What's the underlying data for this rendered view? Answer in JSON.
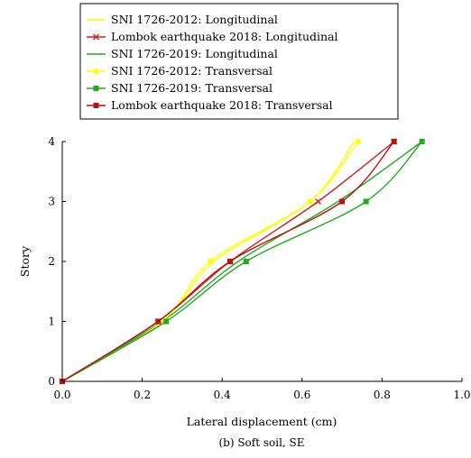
{
  "chart_data": {
    "type": "line",
    "caption": "(b) Soft soil, SE",
    "xlabel": "Lateral displacement (cm)",
    "ylabel": "Story",
    "xlim": [
      0,
      1.0
    ],
    "ylim": [
      0,
      4
    ],
    "xticks": [
      "0.0",
      "0.2",
      "0.4",
      "0.6",
      "0.8",
      "1.0"
    ],
    "yticks": [
      "0",
      "1",
      "2",
      "3",
      "4"
    ],
    "grid": false,
    "legend_position": "top-left",
    "series": [
      {
        "name": "SNI 1726-2012: Longitudinal",
        "color": "#ffff00",
        "marker": "none",
        "x": [
          0,
          0.25,
          0.38,
          0.62,
          0.73
        ],
        "y": [
          0,
          1,
          2,
          3,
          4
        ]
      },
      {
        "name": "Lombok earthquake 2018: Longitudinal",
        "color": "#cc2222",
        "marker": "x",
        "x": [
          0,
          0.24,
          0.42,
          0.64,
          0.83
        ],
        "y": [
          0,
          1,
          2,
          3,
          4
        ]
      },
      {
        "name": "SNI 1726-2019: Longitudinal",
        "color": "#22aa22",
        "marker": "none",
        "x": [
          0,
          0.25,
          0.44,
          0.69,
          0.9
        ],
        "y": [
          0,
          1,
          2,
          3,
          4
        ]
      },
      {
        "name": "SNI 1726-2012: Transversal",
        "color": "#ffff00",
        "marker": "diamond",
        "x": [
          0,
          0.25,
          0.37,
          0.62,
          0.74
        ],
        "y": [
          0,
          1,
          2,
          3,
          4
        ]
      },
      {
        "name": "SNI 1726-2019: Transversal",
        "color": "#22aa22",
        "marker": "square",
        "x": [
          0,
          0.26,
          0.46,
          0.76,
          0.9
        ],
        "y": [
          0,
          1,
          2,
          3,
          4
        ]
      },
      {
        "name": "Lombok earthquake 2018: Transversal",
        "color": "#bb1111",
        "marker": "square",
        "x": [
          0,
          0.24,
          0.42,
          0.7,
          0.83
        ],
        "y": [
          0,
          1,
          2,
          3,
          4
        ]
      }
    ]
  }
}
